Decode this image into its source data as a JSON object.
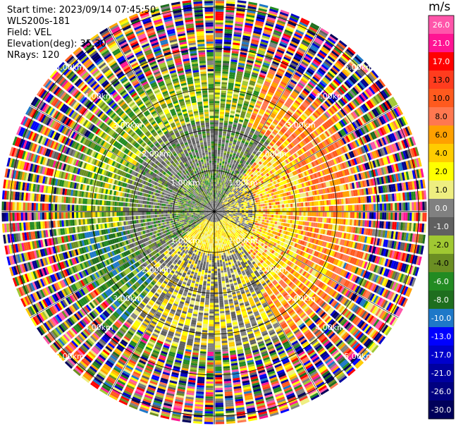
{
  "info": {
    "start_time": "Start time: 2023/09/14 07:45:50",
    "instrument": "WLS200s-181",
    "field": "Field: VEL",
    "elevation": "Elevation(deg): 35.30",
    "nrays": "NRays: 120"
  },
  "colorbar": {
    "unit": "m/s",
    "ticks": [
      "26.0",
      "21.0",
      "17.0",
      "13.0",
      "10.0",
      "8.0",
      "6.0",
      "4.0",
      "2.0",
      "1.0",
      "0.0",
      "-1.0",
      "-2.0",
      "-4.0",
      "-6.0",
      "-8.0",
      "-10.0",
      "-13.0",
      "-17.0",
      "-21.0",
      "-26.0",
      "-30.0"
    ],
    "colors": [
      "#ff55aa",
      "#ff1493",
      "#ff0000",
      "#ff3c1e",
      "#ff5a1e",
      "#ff7850",
      "#ffa000",
      "#ffcc00",
      "#ffff00",
      "#eeee80",
      "#808080",
      "#606060",
      "#a0c832",
      "#6b8e23",
      "#228b22",
      "#1e6e1e",
      "#1e78c8",
      "#0000ff",
      "#0000cc",
      "#0000a0",
      "#000080",
      "#00005a"
    ]
  },
  "chart_data": {
    "type": "ppi",
    "field": "VEL",
    "units": "m/s",
    "vmin": -30.0,
    "vmax": 26.0,
    "nrays": 120,
    "elevation_deg": 35.3,
    "range_rings_km": [
      1.0,
      2.0,
      3.0,
      4.0,
      5.0
    ],
    "ring_labels": [
      "1.00km",
      "2.00km",
      "3.00km",
      "4.00km",
      "5.00km"
    ],
    "max_range_km": 5.2,
    "gate_km": 0.052,
    "near_field_pattern": [
      {
        "sector_deg": [
          45,
          135
        ],
        "km": [
          0.3,
          4.0
        ],
        "class": "positive",
        "note": "east side yellow / orange"
      },
      {
        "sector_deg": [
          135,
          220
        ],
        "km": [
          0.2,
          2.3
        ],
        "class": "yellow"
      },
      {
        "sector_deg": [
          220,
          330
        ],
        "km": [
          0.5,
          3.5
        ],
        "class": "green"
      },
      {
        "sector_deg": [
          330,
          45
        ],
        "km": [
          1.0,
          3.0
        ],
        "class": "green"
      },
      {
        "sector_deg": [
          0,
          360
        ],
        "km": [
          0.0,
          1.0
        ],
        "class": "gray-green"
      }
    ],
    "far_field": "noise beyond ~3.5-4 km (random colors)"
  }
}
